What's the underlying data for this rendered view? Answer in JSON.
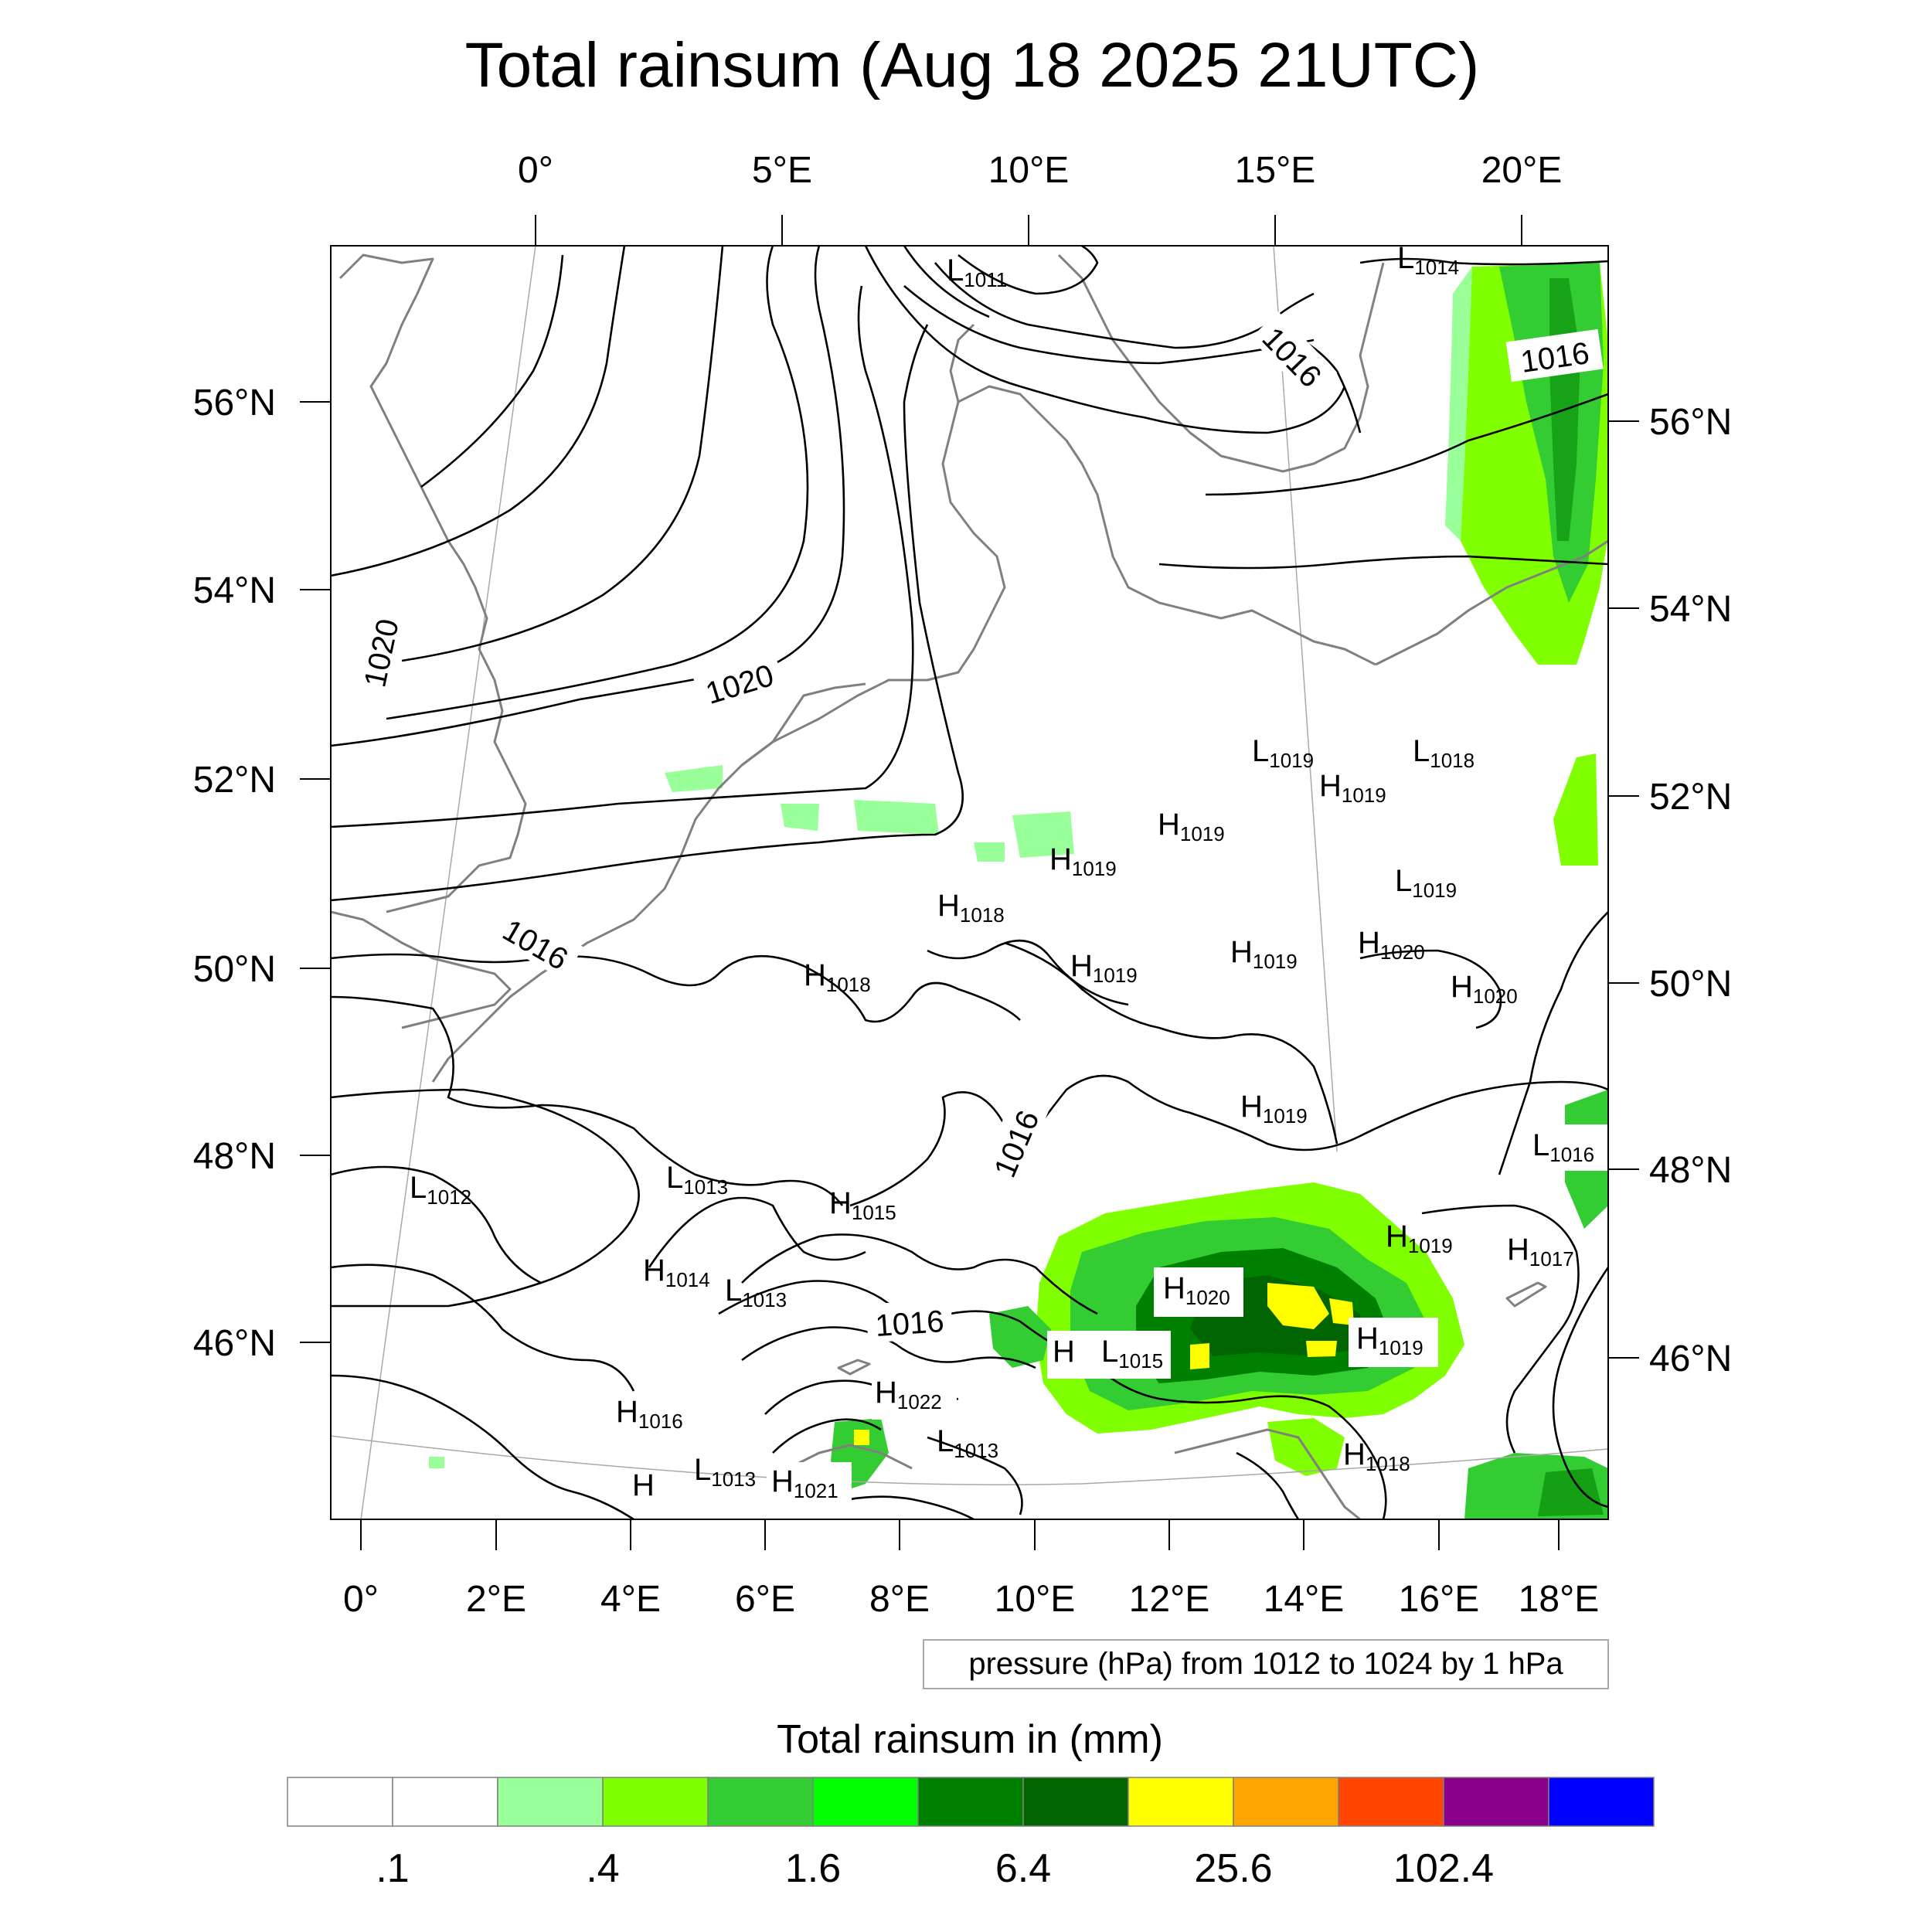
{
  "title": "Total rainsum (Aug 18 2025 21UTC)",
  "top_lon_ticks": [
    "0°",
    "5°E",
    "10°E",
    "15°E",
    "20°E"
  ],
  "bottom_lon_ticks": [
    "0°",
    "2°E",
    "4°E",
    "6°E",
    "8°E",
    "10°E",
    "12°E",
    "14°E",
    "16°E",
    "18°E"
  ],
  "left_lat_ticks": [
    "56°N",
    "54°N",
    "52°N",
    "50°N",
    "48°N",
    "46°N"
  ],
  "right_lat_ticks": [
    "56°N",
    "54°N",
    "52°N",
    "50°N",
    "48°N",
    "46°N"
  ],
  "contour_info": "pressure (hPa) from 1012 to 1024 by 1 hPa",
  "contour_labels": [
    "1016",
    "1020",
    "1020",
    "1016",
    "1016",
    "1016",
    "1016"
  ],
  "pressure_centers": [
    {
      "kind": "L",
      "value": "1011"
    },
    {
      "kind": "L",
      "value": "1014"
    },
    {
      "kind": "L",
      "value": "1019"
    },
    {
      "kind": "L",
      "value": "1018"
    },
    {
      "kind": "H",
      "value": "1019"
    },
    {
      "kind": "H",
      "value": "1019"
    },
    {
      "kind": "H",
      "value": "1019"
    },
    {
      "kind": "L",
      "value": "1019"
    },
    {
      "kind": "H",
      "value": "1018"
    },
    {
      "kind": "H",
      "value": "1018"
    },
    {
      "kind": "H",
      "value": "1019"
    },
    {
      "kind": "H",
      "value": "1019"
    },
    {
      "kind": "H",
      "value": "1020"
    },
    {
      "kind": "H",
      "value": "1020"
    },
    {
      "kind": "H",
      "value": "1019"
    },
    {
      "kind": "L",
      "value": "1016"
    },
    {
      "kind": "L",
      "value": "1012"
    },
    {
      "kind": "L",
      "value": "1013"
    },
    {
      "kind": "H",
      "value": "1015"
    },
    {
      "kind": "H",
      "value": "1019"
    },
    {
      "kind": "H",
      "value": "1017"
    },
    {
      "kind": "H",
      "value": "1014"
    },
    {
      "kind": "L",
      "value": "1013"
    },
    {
      "kind": "H",
      "value": "1020"
    },
    {
      "kind": "H",
      "value": "1019"
    },
    {
      "kind": "L",
      "value": "1015"
    },
    {
      "kind": "H",
      "value": "1016"
    },
    {
      "kind": "H",
      "value": "1022"
    },
    {
      "kind": "L",
      "value": "1013"
    },
    {
      "kind": "H",
      "value": "1018"
    },
    {
      "kind": "L",
      "value": "1013"
    },
    {
      "kind": "H",
      "value": "1021"
    }
  ],
  "colorbar": {
    "title": "Total rainsum in (mm)",
    "colors": [
      "#ffffff",
      "#ffffff",
      "#99ff99",
      "#80ff00",
      "#33cc33",
      "#00ff00",
      "#008000",
      "#006400",
      "#ffff00",
      "#ffa500",
      "#ff4500",
      "#8b008b",
      "#0000ff"
    ],
    "labels": [
      ".1",
      ".4",
      "1.6",
      "6.4",
      "25.6",
      "102.4"
    ]
  },
  "colors": {
    "coastline": "#808080",
    "isobar": "#000000",
    "gridline": "#a9a9a9"
  }
}
